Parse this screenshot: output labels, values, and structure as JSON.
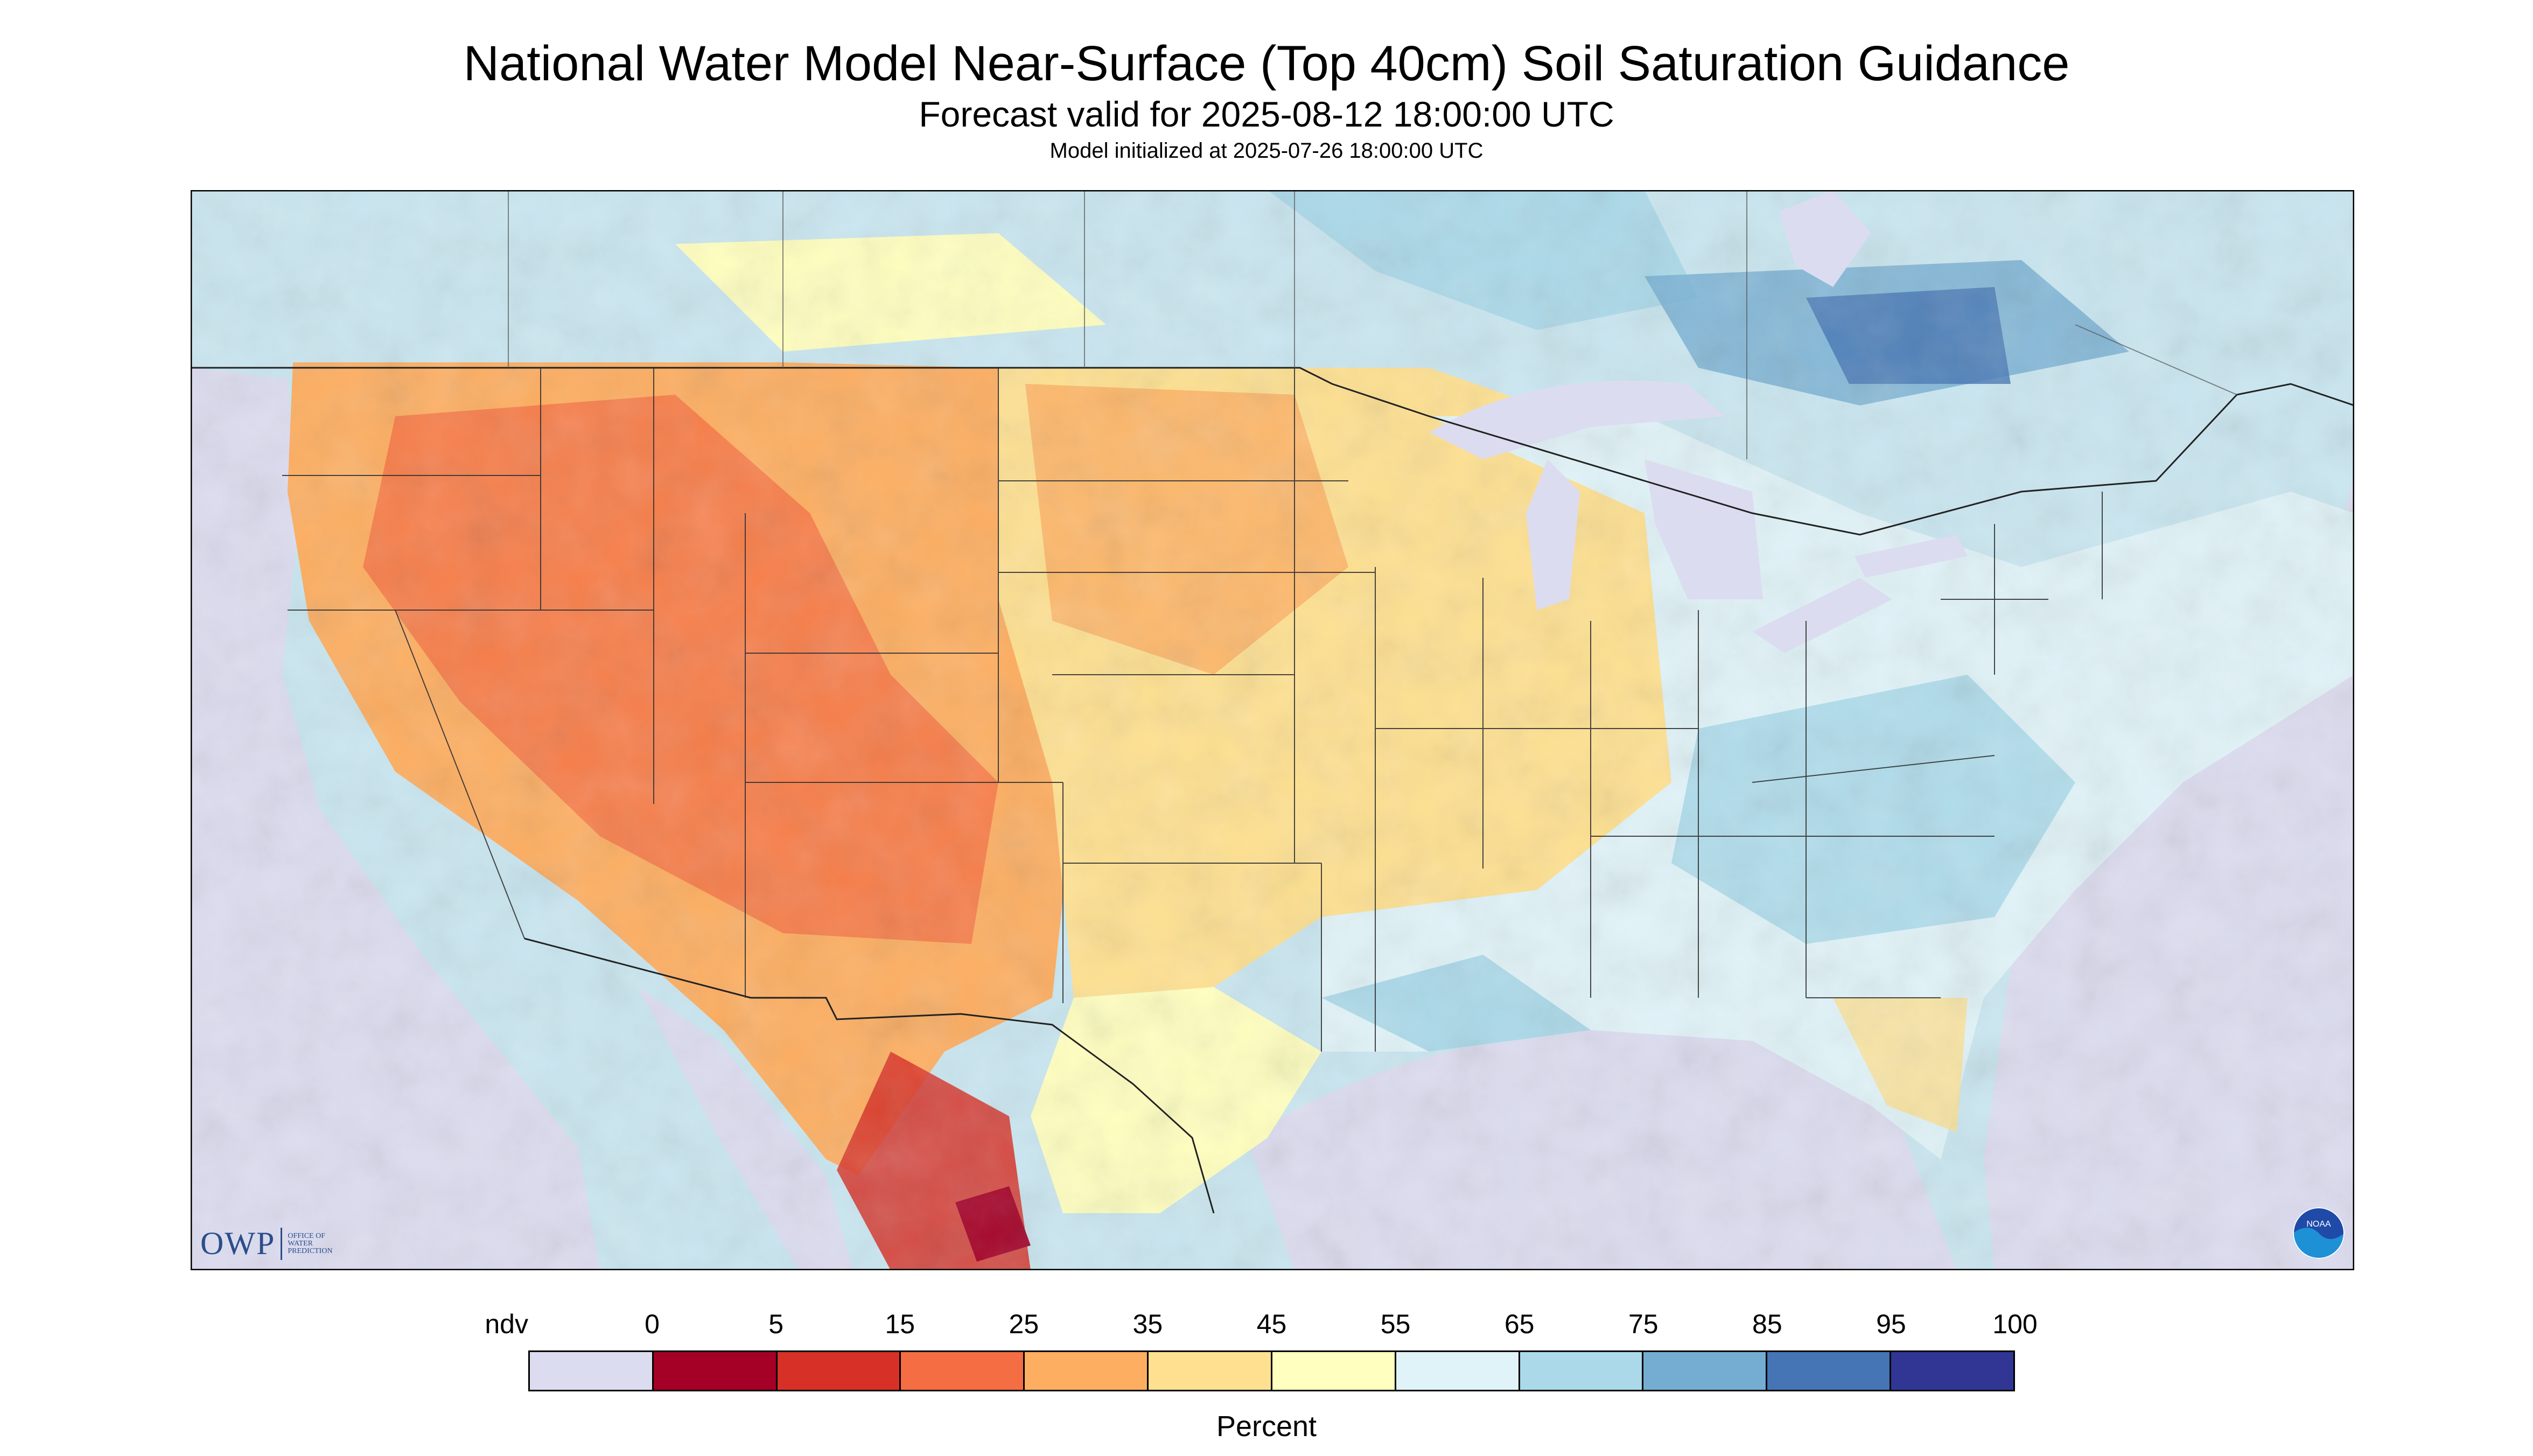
{
  "header": {
    "title": "National Water Model Near-Surface (Top 40cm) Soil Saturation Guidance",
    "subtitle": "Forecast valid for 2025-08-12 18:00:00 UTC",
    "init": "Model initialized at 2025-07-26 18:00:00 UTC"
  },
  "logos": {
    "owp_text": "OWP",
    "owp_small_1": "OFFICE OF",
    "owp_small_2": "WATER",
    "owp_small_3": "PREDICTION",
    "noaa_text": "NOAA"
  },
  "legend": {
    "unit": "Percent",
    "labels": [
      "ndv",
      "0",
      "5",
      "15",
      "25",
      "35",
      "45",
      "55",
      "65",
      "75",
      "85",
      "95",
      "100"
    ],
    "colors": [
      "#dcdcf0",
      "#a50026",
      "#d73027",
      "#f46d43",
      "#fdae61",
      "#fee090",
      "#ffffbf",
      "#e0f3f8",
      "#abd9e9",
      "#74add1",
      "#4575b4",
      "#313695"
    ]
  },
  "map": {
    "nodata_color": "#dcdcf0",
    "water_color": "#dcdcf0",
    "border_color": "#222222"
  }
}
